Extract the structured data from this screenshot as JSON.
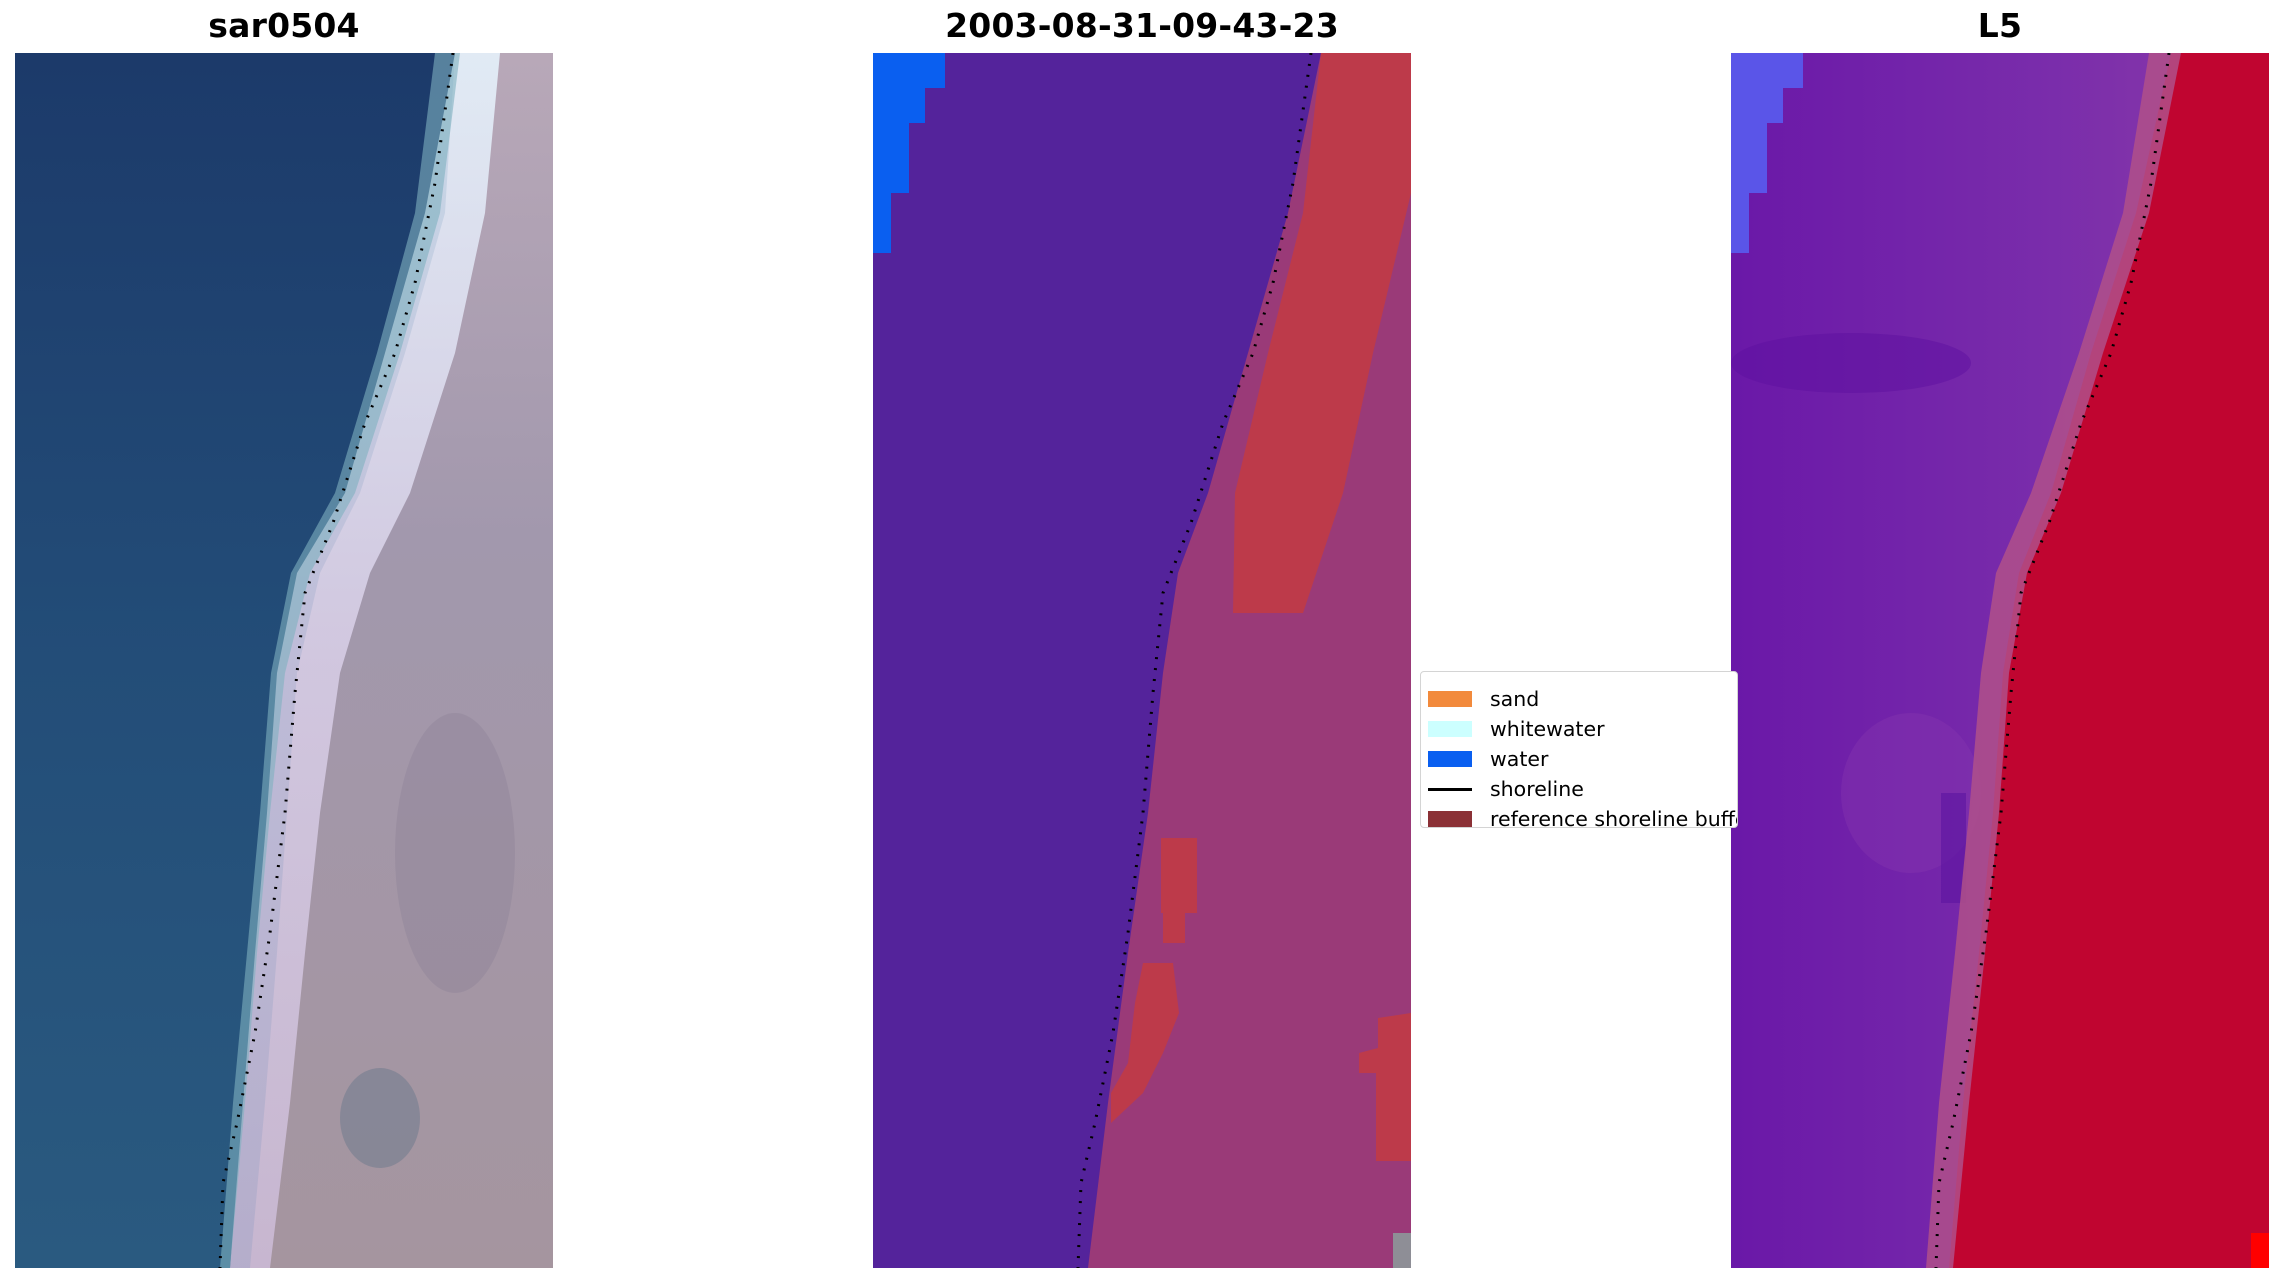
{
  "panels": [
    {
      "id": "rgb",
      "title": "sar0504"
    },
    {
      "id": "classification",
      "title": "2003-08-31-09-43-23"
    },
    {
      "id": "mndwi",
      "title": "L5"
    }
  ],
  "legend": {
    "items": [
      {
        "label": "sand",
        "color": "#f28a3c",
        "kind": "patch"
      },
      {
        "label": "whitewater",
        "color": "#ccffff",
        "kind": "patch"
      },
      {
        "label": "water",
        "color": "#0a5ff0",
        "kind": "patch"
      },
      {
        "label": "shoreline",
        "color": "#000000",
        "kind": "line"
      },
      {
        "label": "reference shoreline buffer",
        "color": "#8b3136",
        "kind": "patch"
      }
    ]
  },
  "colors": {
    "ocean_rgb": "#1f4a75",
    "land_rgb": "#9a8ea2",
    "class_water_dark": "#54239b",
    "class_land": "#9a3a78",
    "class_buffer": "#bd3a4a",
    "class_water_bright": "#0a5ff0",
    "index_water": "#7a2dab",
    "index_land": "#c00530"
  }
}
